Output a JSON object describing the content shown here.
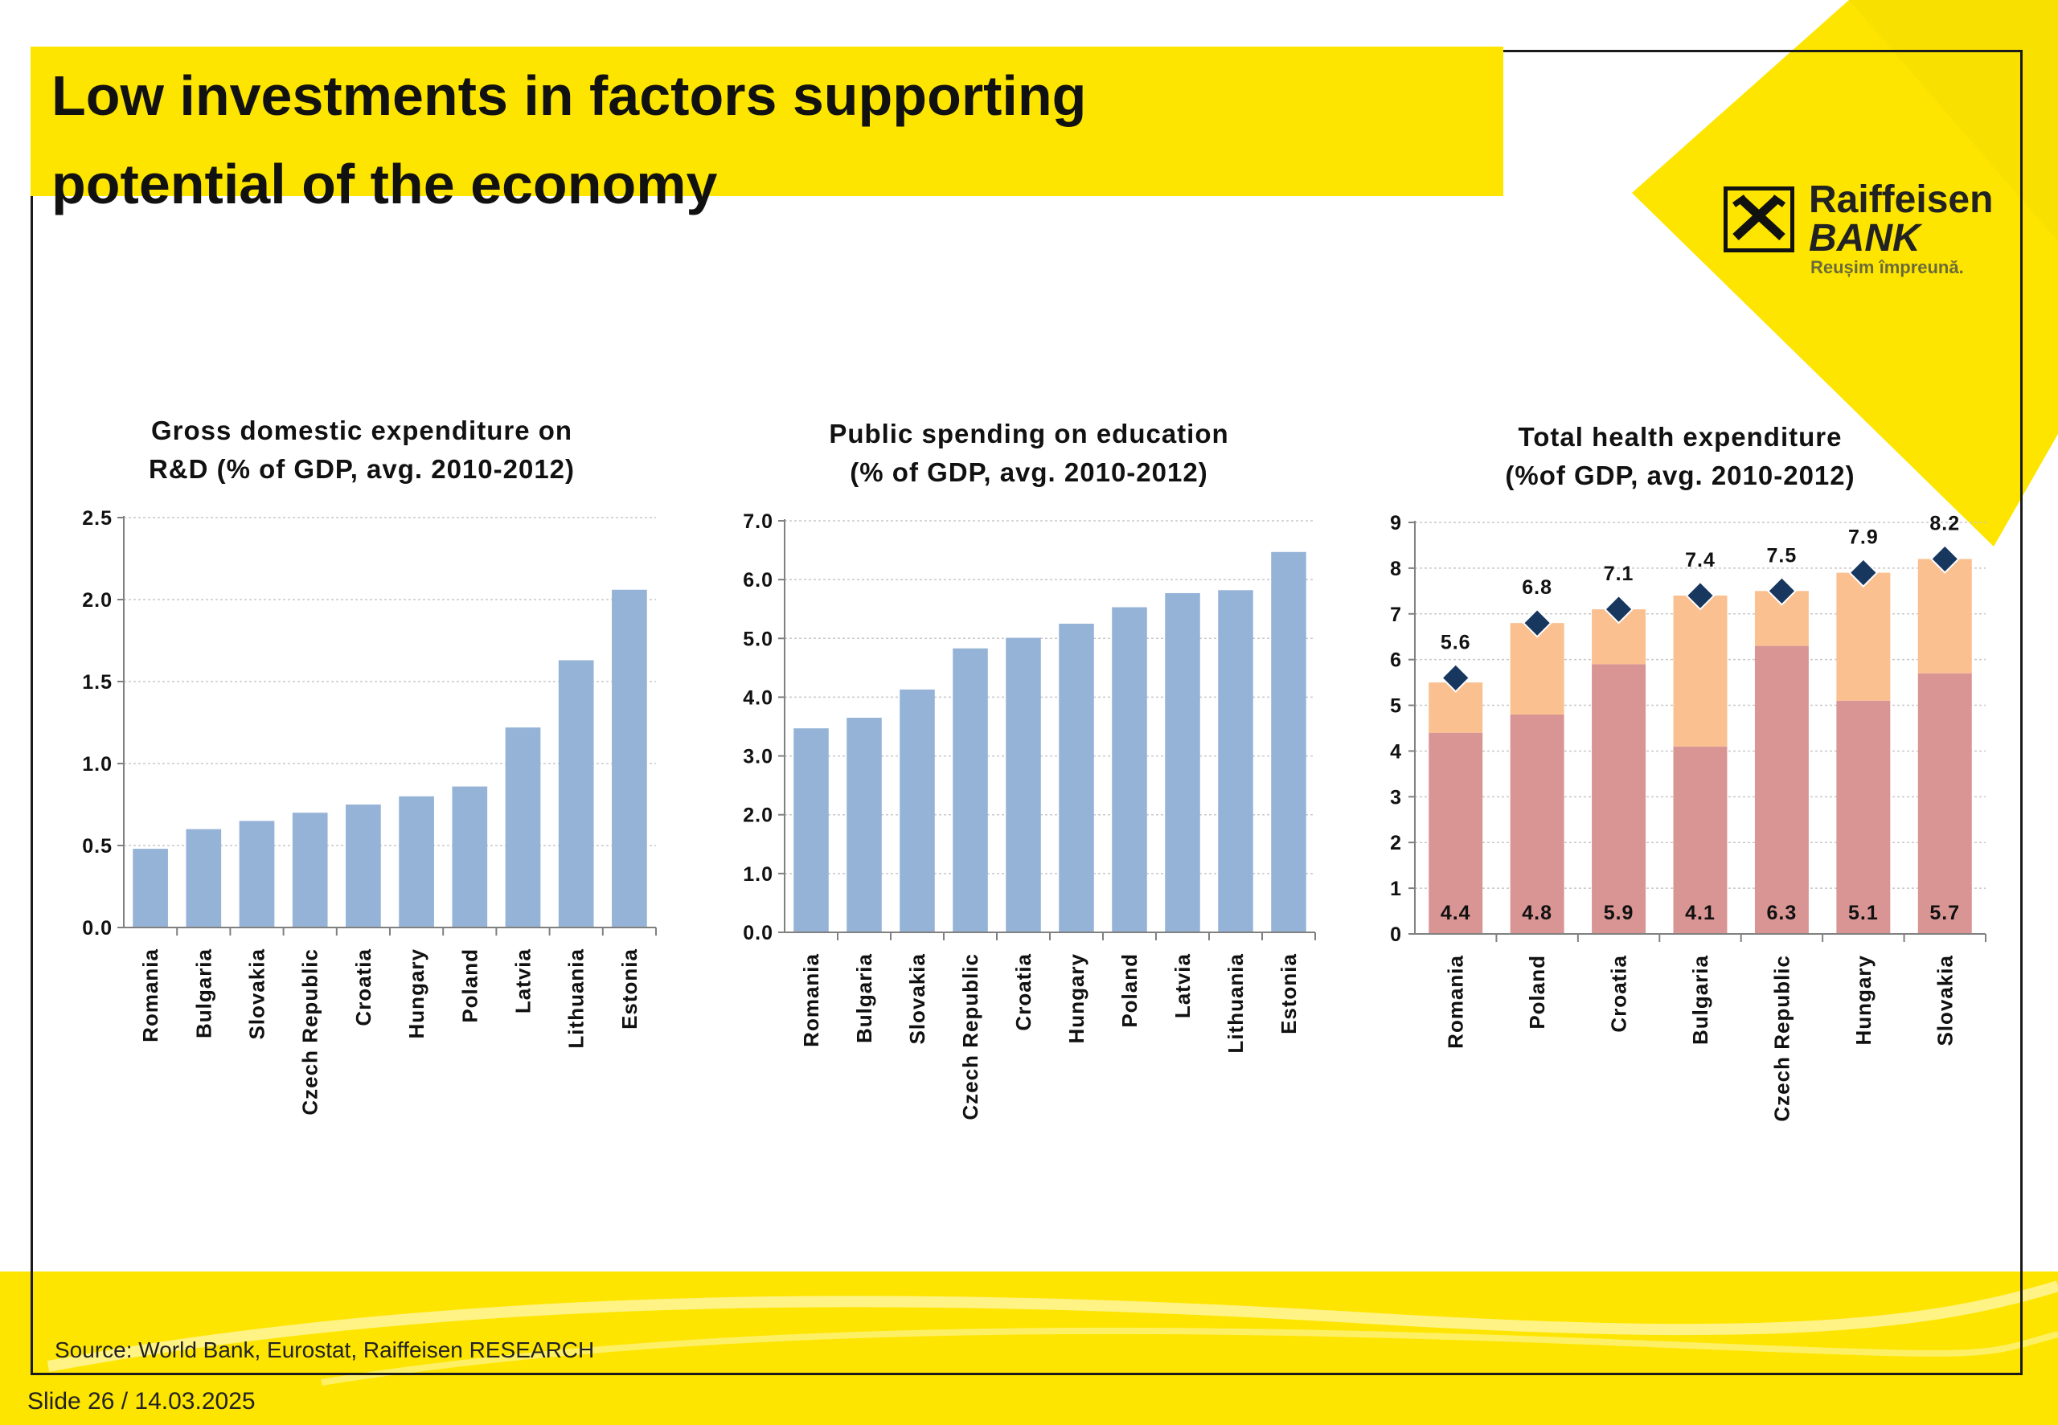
{
  "slide": {
    "title_line1": "Low investments in factors supporting",
    "title_line2": "potential of the economy",
    "source": "Source:  World Bank, Eurostat, Raiffeisen RESEARCH",
    "footer": "Slide 26 / 14.03.2025"
  },
  "logo": {
    "name": "Raiffeisen",
    "sub": "BANK",
    "tagline": "Reușim împreună."
  },
  "colors": {
    "brand_yellow": "#fde500",
    "bar_blue": "#95b3d7",
    "health_public": "#d99594",
    "health_private": "#fac090",
    "marker": "#17375e"
  },
  "chart_data": [
    {
      "type": "bar",
      "title_line1": "Gross domestic expenditure on",
      "title_line2": "R&D (% of GDP, avg. 2010-2012)",
      "categories": [
        "Romania",
        "Bulgaria",
        "Slovakia",
        "Czech Republic",
        "Croatia",
        "Hungary",
        "Poland",
        "Latvia",
        "Lithuania",
        "Estonia"
      ],
      "values": [
        0.48,
        0.6,
        0.65,
        0.7,
        0.75,
        0.8,
        0.86,
        1.22,
        1.63,
        2.06
      ],
      "ylim": [
        0,
        2.5
      ],
      "yticks": [
        "0.0",
        "0.5",
        "1.0",
        "1.5",
        "2.0",
        "2.5"
      ],
      "grid": true
    },
    {
      "type": "bar",
      "title_line1": "Public spending on education",
      "title_line2": "(% of GDP, avg. 2010-2012)",
      "categories": [
        "Romania",
        "Bulgaria",
        "Slovakia",
        "Czech Republic",
        "Croatia",
        "Hungary",
        "Poland",
        "Latvia",
        "Lithuania",
        "Estonia"
      ],
      "values": [
        3.47,
        3.65,
        4.13,
        4.83,
        5.01,
        5.25,
        5.53,
        5.77,
        5.82,
        6.47
      ],
      "ylim": [
        0,
        7
      ],
      "yticks": [
        "0.0",
        "1.0",
        "2.0",
        "3.0",
        "4.0",
        "5.0",
        "6.0",
        "7.0"
      ],
      "grid": true
    },
    {
      "type": "bar",
      "stacked": true,
      "title_line1": "Total health expenditure",
      "title_line2": "(%of GDP, avg. 2010-2012)",
      "categories": [
        "Romania",
        "Poland",
        "Croatia",
        "Bulgaria",
        "Czech Republic",
        "Hungary",
        "Slovakia"
      ],
      "series": [
        {
          "values": [
            4.4,
            4.8,
            5.9,
            4.1,
            6.3,
            5.1,
            5.7
          ]
        },
        {
          "values": [
            1.1,
            2.0,
            1.2,
            3.3,
            1.2,
            2.8,
            2.5
          ]
        }
      ],
      "totals": [
        5.6,
        6.8,
        7.1,
        7.4,
        7.5,
        7.9,
        8.2
      ],
      "base_labels": [
        "4.4",
        "4.8",
        "5.9",
        "4.1",
        "6.3",
        "5.1",
        "5.7"
      ],
      "total_labels": [
        "5.6",
        "6.8",
        "7.1",
        "7.4",
        "7.5",
        "7.9",
        "8.2"
      ],
      "ylim": [
        0,
        9
      ],
      "yticks": [
        "0",
        "1",
        "2",
        "3",
        "4",
        "5",
        "6",
        "7",
        "8",
        "9"
      ],
      "grid": true
    }
  ]
}
